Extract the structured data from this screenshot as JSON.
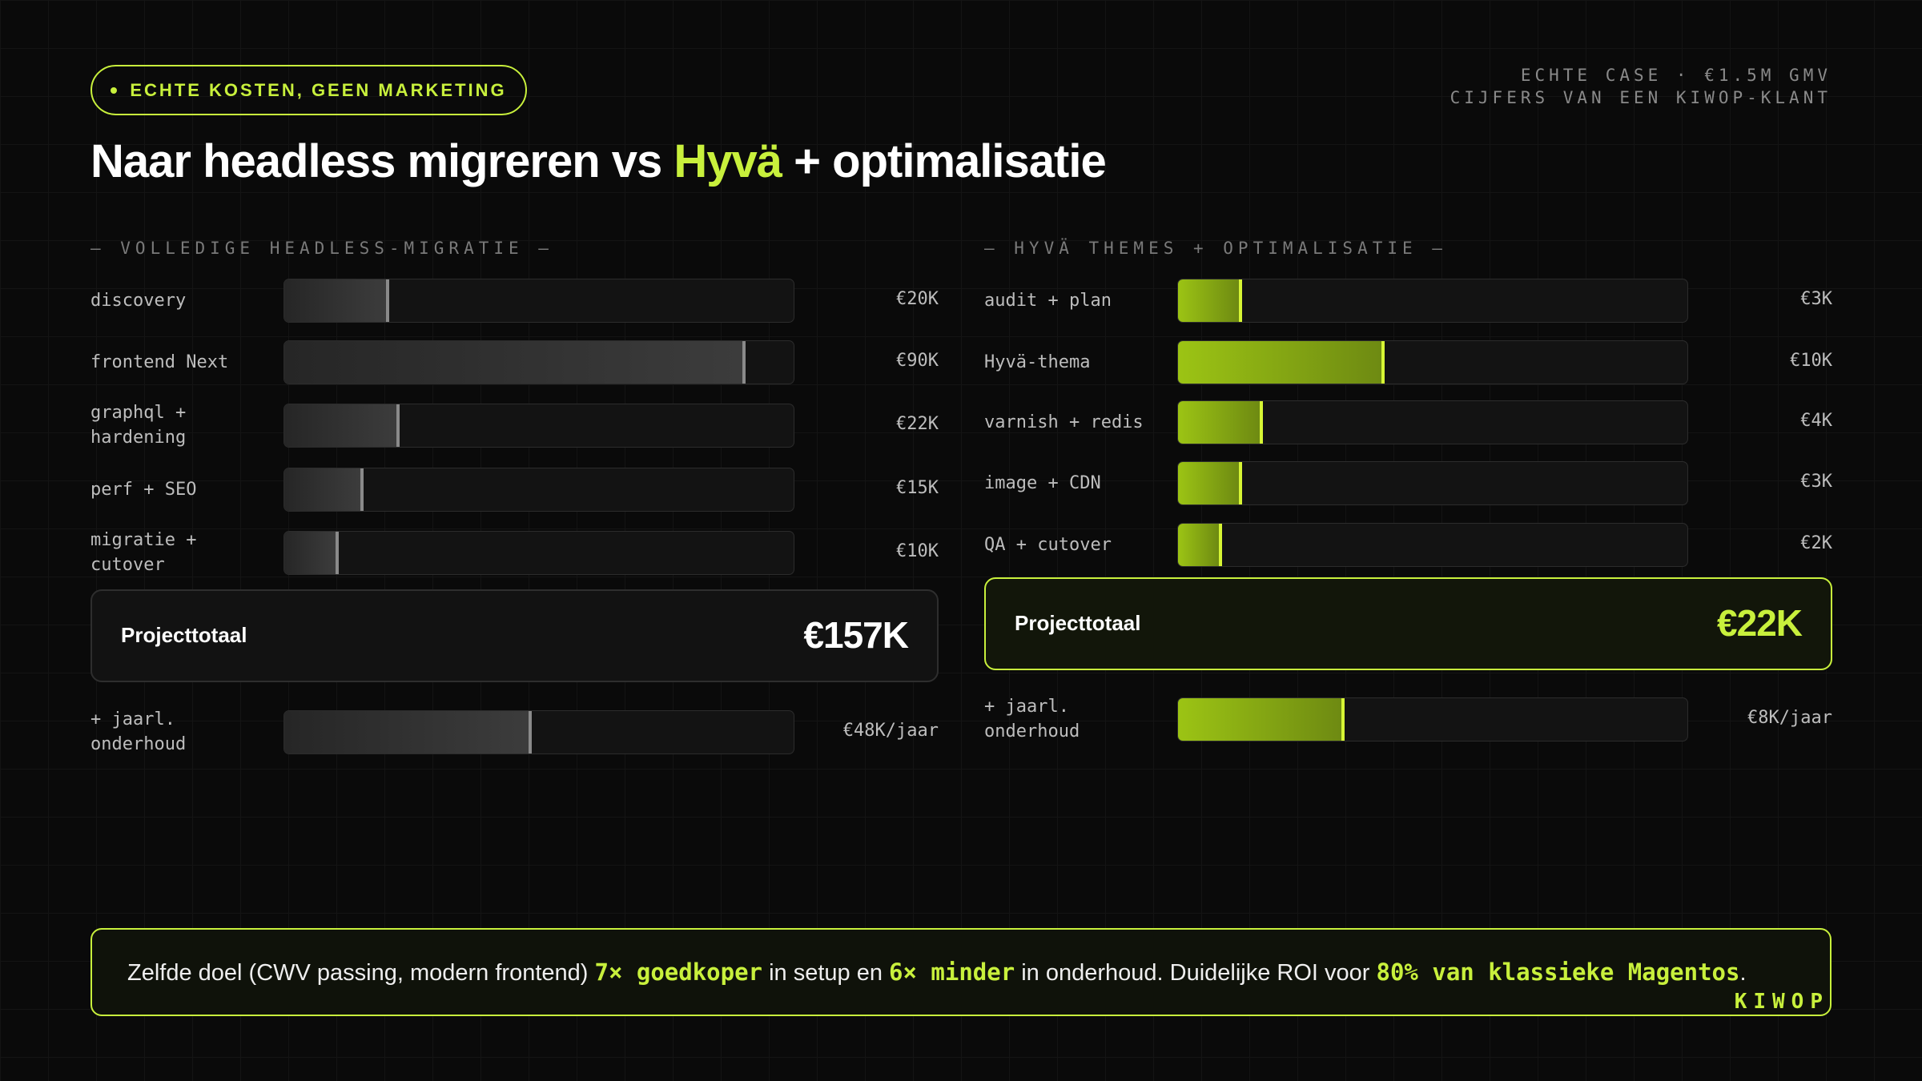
{
  "badge": "ECHTE KOSTEN, GEEN MARKETING",
  "meta": [
    "ECHTE CASE · €1.5M GMV",
    "CIJFERS VAN EEN KIWOP-KLANT"
  ],
  "title": [
    {
      "text": "Naar headless migreren vs ",
      "style": "plain"
    },
    {
      "text": "Hyvä",
      "style": "accent"
    },
    {
      "text": " + optimalisatie",
      "style": "plain"
    }
  ],
  "panels": [
    {
      "heading": "— VOLLEDIGE HEADLESS-MIGRATIE —",
      "theme": "grey",
      "xlim": [
        0,
        100
      ],
      "rows": [
        {
          "label": "discovery",
          "value": 20,
          "value_label": "€20K"
        },
        {
          "label": "frontend Next",
          "value": 90,
          "value_label": "€90K"
        },
        {
          "label": "graphql + hardening",
          "value": 22,
          "value_label": "€22K"
        },
        {
          "label": "perf + SEO",
          "value": 15,
          "value_label": "€15K"
        },
        {
          "label": "migratie + cutover",
          "value": 10,
          "value_label": "€10K"
        }
      ],
      "total_label": "Projecttotaal",
      "total": "€157K",
      "maintenance": {
        "label": "+ jaarl. onderhoud",
        "value": 48,
        "value_label": "€48K/jaar"
      }
    },
    {
      "heading": "— HYVÄ THEMES + OPTIMALISATIE —",
      "theme": "accent",
      "xlim": [
        0,
        25
      ],
      "rows": [
        {
          "label": "audit + plan",
          "value": 3,
          "value_label": "€3K"
        },
        {
          "label": "Hyvä-thema",
          "value": 10,
          "value_label": "€10K"
        },
        {
          "label": "varnish + redis",
          "value": 4,
          "value_label": "€4K"
        },
        {
          "label": "image + CDN",
          "value": 3,
          "value_label": "€3K"
        },
        {
          "label": "QA + cutover",
          "value": 2,
          "value_label": "€2K"
        }
      ],
      "total_label": "Projecttotaal",
      "total": "€22K",
      "maintenance": {
        "label": "+ jaarl. onderhoud",
        "value": 8,
        "value_label": "€8K/jaar"
      }
    }
  ],
  "footer": {
    "segments": [
      {
        "text": "Zelfde doel (CWV passing, modern frontend) ",
        "style": "plain"
      },
      {
        "text": "7× goedkoper",
        "style": "accent"
      },
      {
        "text": " in setup en ",
        "style": "plain"
      },
      {
        "text": "6× minder",
        "style": "accent"
      },
      {
        "text": " in onderhoud. Duidelijke ROI voor ",
        "style": "plain"
      },
      {
        "text": "80% van klassieke Magentos",
        "style": "accent"
      },
      {
        "text": ".",
        "style": "plain"
      }
    ]
  },
  "brand": "KIWOP"
}
